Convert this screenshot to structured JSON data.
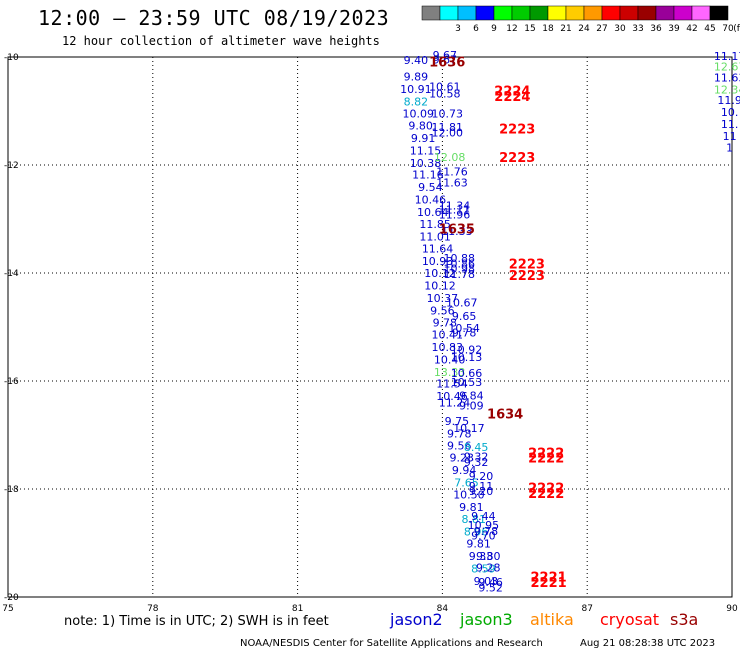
{
  "title": "12:00 – 23:59 UTC 08/19/2023",
  "subtitle": "12 hour collection of altimeter wave heights",
  "legend": {
    "unit": "(ft)",
    "bins": [
      {
        "label": "",
        "color": "#808080"
      },
      {
        "label": "3",
        "color": "#00ffff"
      },
      {
        "label": "6",
        "color": "#00bfff"
      },
      {
        "label": "9",
        "color": "#0000ff"
      },
      {
        "label": "12",
        "color": "#00ff00"
      },
      {
        "label": "15",
        "color": "#00cc00"
      },
      {
        "label": "18",
        "color": "#009900"
      },
      {
        "label": "21",
        "color": "#ffff00"
      },
      {
        "label": "24",
        "color": "#ffcc00"
      },
      {
        "label": "27",
        "color": "#ff9900"
      },
      {
        "label": "30",
        "color": "#ff0000"
      },
      {
        "label": "33",
        "color": "#cc0000"
      },
      {
        "label": "36",
        "color": "#990000"
      },
      {
        "label": "39",
        "color": "#990099"
      },
      {
        "label": "42",
        "color": "#cc00cc"
      },
      {
        "label": "45",
        "color": "#ff66ff"
      },
      {
        "label": "70",
        "color": "#000000"
      }
    ]
  },
  "note": "note:  1) Time is in UTC;  2) SWH is in feet",
  "satellites": [
    {
      "name": "jason2",
      "color": "#0000cc"
    },
    {
      "name": "jason3",
      "color": "#00aa00"
    },
    {
      "name": "altika",
      "color": "#ff8800"
    },
    {
      "name": "cryosat",
      "color": "#ff0000"
    },
    {
      "name": "s3a",
      "color": "#990000"
    }
  ],
  "credit": "NOAA/NESDIS Center for Satellite Applications and Research",
  "timestamp": "Aug 21 08:28:38 UTC 2023",
  "chart_data": {
    "type": "scatter",
    "xlim": [
      75,
      90
    ],
    "ylim": [
      -20,
      -10
    ],
    "xticks": [
      "75",
      "78",
      "81",
      "84",
      "87",
      "90"
    ],
    "yticks": [
      "-10",
      "-12",
      "-14",
      "-16",
      "-18",
      "-20"
    ],
    "grid": true,
    "points": [
      {
        "x": 83.45,
        "y": -10.06,
        "label": "9.40",
        "color": "#0000cc"
      },
      {
        "x": 83.45,
        "y": -10.36,
        "label": "9.89",
        "color": "#0000cc"
      },
      {
        "x": 83.45,
        "y": -10.59,
        "label": "10.91",
        "color": "#0000cc"
      },
      {
        "x": 83.45,
        "y": -10.82,
        "label": "8.82",
        "color": "#00aacc"
      },
      {
        "x": 83.5,
        "y": -11.05,
        "label": "10.09",
        "color": "#0000cc"
      },
      {
        "x": 83.55,
        "y": -11.27,
        "label": "9.80",
        "color": "#0000cc"
      },
      {
        "x": 83.6,
        "y": -11.5,
        "label": "9.91",
        "color": "#0000cc"
      },
      {
        "x": 83.65,
        "y": -11.73,
        "label": "11.15",
        "color": "#0000cc"
      },
      {
        "x": 83.65,
        "y": -11.96,
        "label": "10.38",
        "color": "#0000cc"
      },
      {
        "x": 83.7,
        "y": -12.18,
        "label": "11.16",
        "color": "#0000cc"
      },
      {
        "x": 83.75,
        "y": -12.41,
        "label": "9.54",
        "color": "#0000cc"
      },
      {
        "x": 83.75,
        "y": -12.64,
        "label": "10.46",
        "color": "#0000cc"
      },
      {
        "x": 83.8,
        "y": -12.87,
        "label": "10.64",
        "color": "#0000cc"
      },
      {
        "x": 83.85,
        "y": -13.09,
        "label": "11.85",
        "color": "#0000cc"
      },
      {
        "x": 83.85,
        "y": -13.32,
        "label": "11.01",
        "color": "#0000cc"
      },
      {
        "x": 83.9,
        "y": -13.55,
        "label": "11.64",
        "color": "#0000cc"
      },
      {
        "x": 83.9,
        "y": -13.78,
        "label": "10.93",
        "color": "#0000cc"
      },
      {
        "x": 83.95,
        "y": -14.0,
        "label": "10.12",
        "color": "#0000cc"
      },
      {
        "x": 83.95,
        "y": -14.23,
        "label": "10.12",
        "color": "#0000cc"
      },
      {
        "x": 84.0,
        "y": -14.46,
        "label": "10.37",
        "color": "#0000cc"
      },
      {
        "x": 84.0,
        "y": -14.69,
        "label": "9.56",
        "color": "#0000cc"
      },
      {
        "x": 84.05,
        "y": -14.92,
        "label": "9.78",
        "color": "#0000cc"
      },
      {
        "x": 84.1,
        "y": -15.14,
        "label": "10.41",
        "color": "#0000cc"
      },
      {
        "x": 84.1,
        "y": -15.37,
        "label": "10.83",
        "color": "#0000cc"
      },
      {
        "x": 84.15,
        "y": -15.6,
        "label": "10.40",
        "color": "#0000cc"
      },
      {
        "x": 84.15,
        "y": -15.83,
        "label": "13.33",
        "color": "#66dd66"
      },
      {
        "x": 84.2,
        "y": -16.05,
        "label": "11.54",
        "color": "#0000cc"
      },
      {
        "x": 84.2,
        "y": -16.28,
        "label": "10.46",
        "color": "#0000cc"
      },
      {
        "x": 84.25,
        "y": -16.4,
        "label": "11.24",
        "color": "#0000cc"
      },
      {
        "x": 84.3,
        "y": -16.74,
        "label": "9.75",
        "color": "#0000cc"
      },
      {
        "x": 84.35,
        "y": -16.97,
        "label": "9.78",
        "color": "#0000cc"
      },
      {
        "x": 84.35,
        "y": -17.19,
        "label": "9.56",
        "color": "#0000cc"
      },
      {
        "x": 84.4,
        "y": -17.42,
        "label": "9.23",
        "color": "#0000cc"
      },
      {
        "x": 84.45,
        "y": -17.65,
        "label": "9.94",
        "color": "#0000cc"
      },
      {
        "x": 84.5,
        "y": -17.88,
        "label": "7.65",
        "color": "#00aacc"
      },
      {
        "x": 84.55,
        "y": -18.1,
        "label": "10.50",
        "color": "#0000cc"
      },
      {
        "x": 84.6,
        "y": -18.33,
        "label": "9.81",
        "color": "#0000cc"
      },
      {
        "x": 84.65,
        "y": -18.56,
        "label": "8.81",
        "color": "#00aacc"
      },
      {
        "x": 84.7,
        "y": -18.79,
        "label": "8.96",
        "color": "#00aacc"
      },
      {
        "x": 84.75,
        "y": -19.01,
        "label": "9.81",
        "color": "#0000cc"
      },
      {
        "x": 84.8,
        "y": -19.24,
        "label": "9.33",
        "color": "#0000cc"
      },
      {
        "x": 84.85,
        "y": -19.47,
        "label": "8.59",
        "color": "#00aacc"
      },
      {
        "x": 84.9,
        "y": -19.7,
        "label": "9.03",
        "color": "#0000cc"
      },
      {
        "x": 84.05,
        "y": -9.96,
        "label": "9.67",
        "color": "#0000cc"
      },
      {
        "x": 84.05,
        "y": -10.05,
        "label": "9.67",
        "color": "#0000cc"
      },
      {
        "x": 84.05,
        "y": -10.55,
        "label": "10.61",
        "color": "#0000cc"
      },
      {
        "x": 84.05,
        "y": -10.68,
        "label": "10.58",
        "color": "#0000cc"
      },
      {
        "x": 84.1,
        "y": -11.05,
        "label": "10.73",
        "color": "#0000cc"
      },
      {
        "x": 84.1,
        "y": -11.3,
        "label": "11.81",
        "color": "#0000cc"
      },
      {
        "x": 84.1,
        "y": -11.4,
        "label": "12.00",
        "color": "#0000cc"
      },
      {
        "x": 84.15,
        "y": -11.85,
        "label": "12.08",
        "color": "#66dd66"
      },
      {
        "x": 84.2,
        "y": -12.12,
        "label": "11.76",
        "color": "#0000cc"
      },
      {
        "x": 84.2,
        "y": -12.32,
        "label": "11.63",
        "color": "#0000cc"
      },
      {
        "x": 84.25,
        "y": -12.75,
        "label": "11.34",
        "color": "#0000cc"
      },
      {
        "x": 84.25,
        "y": -12.82,
        "label": "11.11",
        "color": "#0000cc"
      },
      {
        "x": 84.25,
        "y": -12.92,
        "label": "11.96",
        "color": "#0000cc"
      },
      {
        "x": 84.3,
        "y": -13.22,
        "label": "11.33",
        "color": "#0000cc"
      },
      {
        "x": 84.35,
        "y": -13.72,
        "label": "10.88",
        "color": "#0000cc"
      },
      {
        "x": 84.35,
        "y": -13.82,
        "label": "10.86",
        "color": "#0000cc"
      },
      {
        "x": 84.35,
        "y": -13.92,
        "label": "10.98",
        "color": "#0000cc"
      },
      {
        "x": 84.35,
        "y": -14.02,
        "label": "11.78",
        "color": "#0000cc"
      },
      {
        "x": 84.4,
        "y": -14.55,
        "label": "10.67",
        "color": "#0000cc"
      },
      {
        "x": 84.45,
        "y": -14.8,
        "label": "9.65",
        "color": "#0000cc"
      },
      {
        "x": 84.45,
        "y": -15.02,
        "label": "10.54",
        "color": "#0000cc"
      },
      {
        "x": 84.45,
        "y": -15.1,
        "label": "9.78",
        "color": "#0000cc"
      },
      {
        "x": 84.5,
        "y": -15.42,
        "label": "10.92",
        "color": "#0000cc"
      },
      {
        "x": 84.5,
        "y": -15.56,
        "label": "10.13",
        "color": "#0000cc"
      },
      {
        "x": 84.5,
        "y": -15.85,
        "label": "10.66",
        "color": "#0000cc"
      },
      {
        "x": 84.5,
        "y": -16.02,
        "label": "10.53",
        "color": "#0000cc"
      },
      {
        "x": 84.6,
        "y": -16.27,
        "label": "9.84",
        "color": "#0000cc"
      },
      {
        "x": 84.6,
        "y": -16.45,
        "label": "9.09",
        "color": "#0000cc"
      },
      {
        "x": 84.55,
        "y": -16.87,
        "label": "10.17",
        "color": "#0000cc"
      },
      {
        "x": 84.7,
        "y": -17.22,
        "label": "8.45",
        "color": "#00aacc"
      },
      {
        "x": 84.7,
        "y": -17.4,
        "label": "9.32",
        "color": "#0000cc"
      },
      {
        "x": 84.7,
        "y": -17.5,
        "label": "9.32",
        "color": "#0000cc"
      },
      {
        "x": 84.8,
        "y": -17.76,
        "label": "9.20",
        "color": "#0000cc"
      },
      {
        "x": 84.8,
        "y": -17.94,
        "label": "9.11",
        "color": "#0000cc"
      },
      {
        "x": 84.8,
        "y": -18.04,
        "label": "9.20",
        "color": "#0000cc"
      },
      {
        "x": 84.85,
        "y": -18.5,
        "label": "9.44",
        "color": "#0000cc"
      },
      {
        "x": 84.85,
        "y": -18.67,
        "label": "10.95",
        "color": "#0000cc"
      },
      {
        "x": 84.85,
        "y": -18.86,
        "label": "9.70",
        "color": "#0000cc"
      },
      {
        "x": 84.9,
        "y": -18.78,
        "label": "9.78",
        "color": "#0000cc"
      },
      {
        "x": 84.95,
        "y": -19.24,
        "label": "9.80",
        "color": "#0000cc"
      },
      {
        "x": 84.95,
        "y": -19.45,
        "label": "9.28",
        "color": "#0000cc"
      },
      {
        "x": 85.0,
        "y": -19.72,
        "label": "9.46",
        "color": "#0000cc"
      },
      {
        "x": 85.0,
        "y": -19.82,
        "label": "9.52",
        "color": "#0000cc"
      },
      {
        "x": 89.95,
        "y": -9.98,
        "label": "11.17",
        "color": "#0000cc"
      },
      {
        "x": 89.95,
        "y": -10.18,
        "label": "12.67",
        "color": "#66dd66"
      },
      {
        "x": 89.95,
        "y": -10.38,
        "label": "11.63",
        "color": "#0000cc"
      },
      {
        "x": 89.95,
        "y": -10.6,
        "label": "12.34",
        "color": "#66dd66"
      },
      {
        "x": 89.95,
        "y": -10.8,
        "label": "11.9",
        "color": "#0000cc"
      },
      {
        "x": 89.95,
        "y": -11.02,
        "label": "10.",
        "color": "#0000cc"
      },
      {
        "x": 89.95,
        "y": -11.24,
        "label": "11.",
        "color": "#0000cc"
      },
      {
        "x": 89.95,
        "y": -11.46,
        "label": "11",
        "color": "#0000cc"
      },
      {
        "x": 89.95,
        "y": -11.68,
        "label": "1",
        "color": "#0000cc"
      }
    ],
    "track_labels": [
      {
        "x": 84.1,
        "y": -10.08,
        "label": "1636",
        "color": "#990000"
      },
      {
        "x": 84.3,
        "y": -13.18,
        "label": "1635",
        "color": "#990000"
      },
      {
        "x": 85.3,
        "y": -16.6,
        "label": "1634",
        "color": "#990000"
      },
      {
        "x": 85.45,
        "y": -10.62,
        "label": "2224",
        "color": "#ff0000"
      },
      {
        "x": 85.45,
        "y": -10.72,
        "label": "2224",
        "color": "#ff0000"
      },
      {
        "x": 85.55,
        "y": -11.32,
        "label": "2223",
        "color": "#ff0000"
      },
      {
        "x": 85.55,
        "y": -11.85,
        "label": "2223",
        "color": "#ff0000"
      },
      {
        "x": 85.75,
        "y": -13.82,
        "label": "2223",
        "color": "#ff0000"
      },
      {
        "x": 85.75,
        "y": -14.04,
        "label": "2223",
        "color": "#ff0000"
      },
      {
        "x": 86.15,
        "y": -17.32,
        "label": "2222",
        "color": "#ff0000"
      },
      {
        "x": 86.15,
        "y": -17.42,
        "label": "2222",
        "color": "#ff0000"
      },
      {
        "x": 86.15,
        "y": -17.97,
        "label": "2222",
        "color": "#ff0000"
      },
      {
        "x": 86.15,
        "y": -18.07,
        "label": "2222",
        "color": "#ff0000"
      },
      {
        "x": 86.2,
        "y": -19.62,
        "label": "2221",
        "color": "#ff0000"
      },
      {
        "x": 86.2,
        "y": -19.72,
        "label": "2221",
        "color": "#ff0000"
      }
    ]
  }
}
